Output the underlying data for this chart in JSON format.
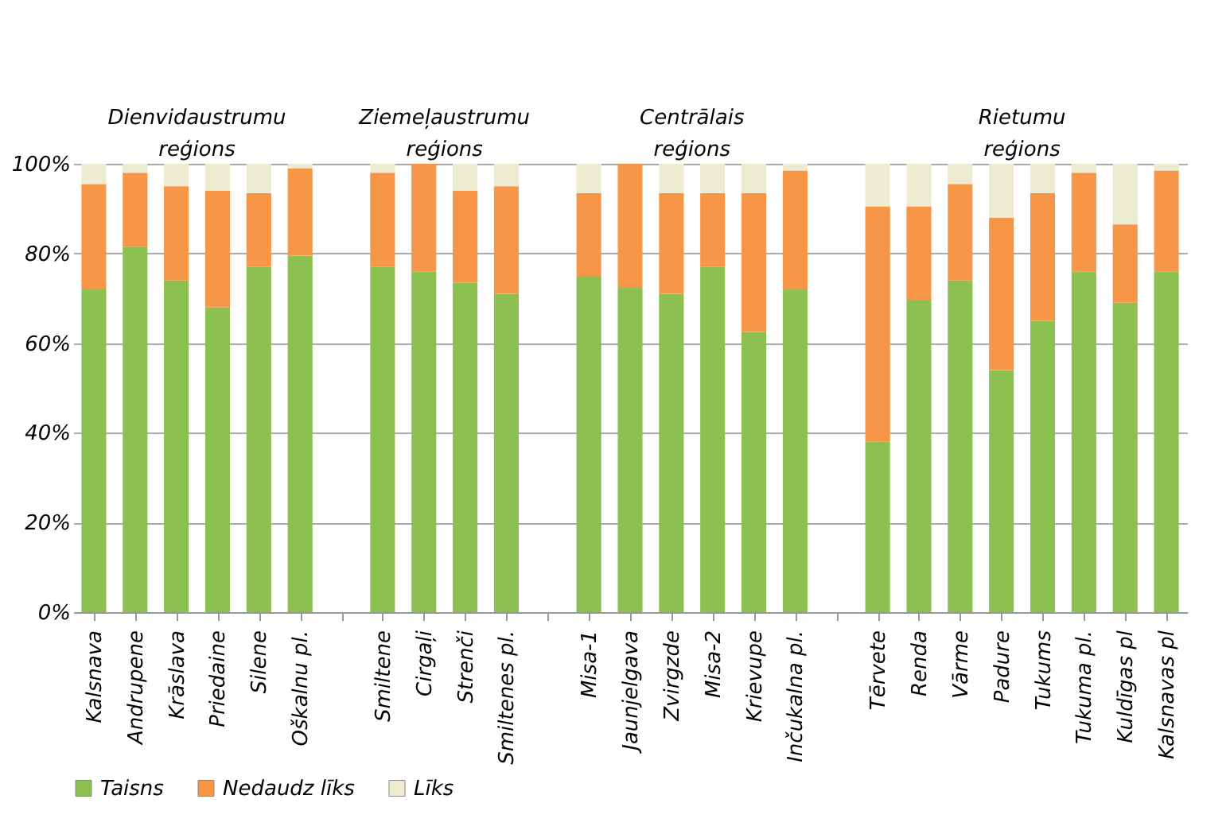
{
  "chart_data": {
    "type": "bar",
    "stacked": true,
    "categories": [
      "Kalsnava",
      "Andrupene",
      "Krāslava",
      "Priedaine",
      "Silene",
      "Oškalnu pl.",
      null,
      "Smiltene",
      "Cirgaļi",
      "Strenči",
      "Smiltenes pl.",
      null,
      "Misa-1",
      "Jaunjelgava",
      "Zvirgzde",
      "Misa-2",
      "Krievupe",
      "Inčukalna pl.",
      null,
      "Tērvete",
      "Renda",
      "Vārme",
      "Padure",
      "Tukums",
      "Tukuma pl.",
      "Kuldīgas pl",
      "Kalsnavas pl"
    ],
    "series": [
      {
        "name": "Taisns",
        "color": "#8cc152",
        "values": [
          72,
          81.5,
          74,
          68,
          77,
          79.5,
          null,
          77,
          76,
          73.5,
          71,
          null,
          75,
          72.5,
          71,
          77,
          62.5,
          72,
          null,
          38,
          69.5,
          74,
          54,
          65,
          76,
          69,
          76
        ]
      },
      {
        "name": "Nedaudz līks",
        "color": "#f79646",
        "values": [
          23.5,
          16.5,
          21,
          26,
          16.5,
          19.5,
          null,
          21,
          24,
          20.5,
          24,
          null,
          18.5,
          27.5,
          22.5,
          16.5,
          31,
          26.5,
          null,
          52.5,
          21,
          21.5,
          34,
          28.5,
          22,
          17.5,
          22.5
        ]
      },
      {
        "name": "Līks",
        "color": "#eeecd0",
        "values": [
          4.5,
          2,
          5,
          6,
          6.5,
          1,
          null,
          2,
          0,
          6,
          5,
          null,
          6.5,
          0,
          6.5,
          6.5,
          6.5,
          1.5,
          null,
          9.5,
          9.5,
          4.5,
          12,
          6.5,
          2,
          13.5,
          1.5
        ]
      }
    ],
    "annotations": [
      "Dienvidaustrumu reģions",
      "Ziemeļaustrumu reģions",
      "Centrālais reģions",
      "Rietumu reģions"
    ],
    "ylim": [
      0,
      100
    ],
    "yticks": [
      {
        "value": 0,
        "label": "0%"
      },
      {
        "value": 20,
        "label": "20%"
      },
      {
        "value": 40,
        "label": "40%"
      },
      {
        "value": 60,
        "label": "60%"
      },
      {
        "value": 80,
        "label": "80%"
      },
      {
        "value": 100,
        "label": "100%"
      }
    ],
    "grid": "y",
    "legend": "bottom"
  }
}
